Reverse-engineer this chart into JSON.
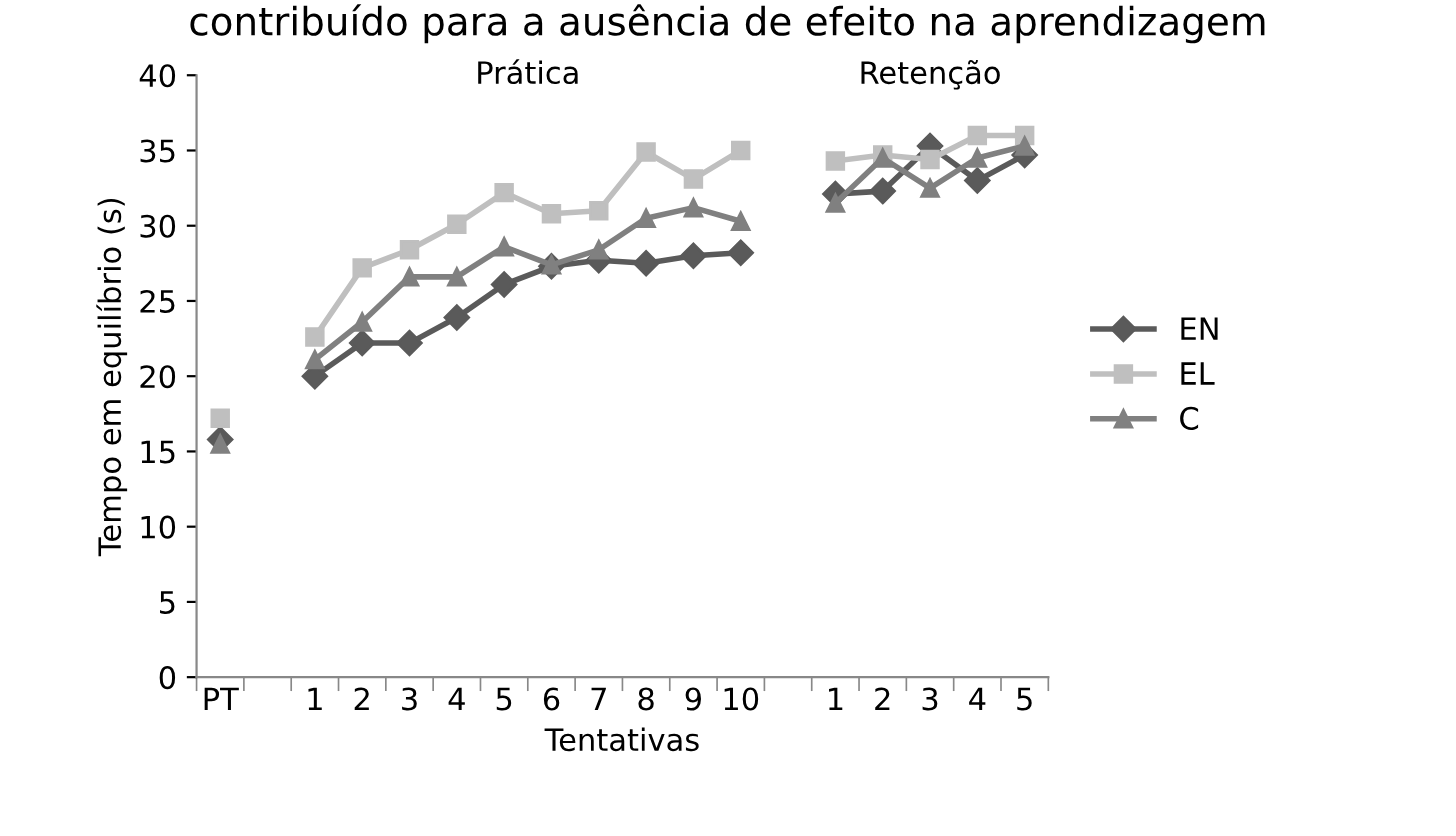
{
  "chart_data": {
    "type": "line",
    "title": "contribuído para a ausência de efeito na aprendizagem",
    "xlabel": "Tentativas",
    "ylabel": "Tempo em equilíbrio (s)",
    "annotations": [
      "Prática",
      "Retenção"
    ],
    "categories": [
      "PT",
      null,
      "1",
      "2",
      "3",
      "4",
      "5",
      "6",
      "7",
      "8",
      "9",
      "10",
      null,
      "1",
      "2",
      "3",
      "4",
      "5"
    ],
    "series": [
      {
        "name": "EN",
        "color": "#5a5a5a",
        "marker": "diamond",
        "values": [
          15.8,
          null,
          20,
          22.2,
          22.2,
          23.9,
          26.1,
          27.3,
          27.7,
          27.5,
          28.0,
          28.2,
          null,
          32.1,
          32.3,
          35.3,
          33.0,
          34.7
        ]
      },
      {
        "name": "EL",
        "color": "#bfbfbf",
        "marker": "square",
        "values": [
          17.2,
          null,
          22.6,
          27.2,
          28.4,
          30.1,
          32.2,
          30.8,
          31.0,
          34.9,
          33.1,
          35.0,
          null,
          34.3,
          34.7,
          34.4,
          36.0,
          36.0
        ]
      },
      {
        "name": "C",
        "color": "#808080",
        "marker": "triangle",
        "values": [
          15.5,
          null,
          21.1,
          23.6,
          26.6,
          26.6,
          28.6,
          27.4,
          28.4,
          30.5,
          31.2,
          30.3,
          null,
          31.5,
          34.5,
          32.5,
          34.5,
          35.3
        ]
      }
    ],
    "ylim": [
      0,
      40
    ],
    "yticks": [
      0,
      5,
      10,
      15,
      20,
      25,
      30,
      35,
      40
    ],
    "grid": false,
    "legend": "right"
  }
}
